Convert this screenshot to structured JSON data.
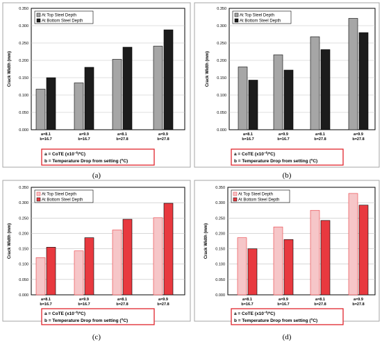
{
  "chart_data": [
    {
      "type": "bar",
      "panel_label": "(a)",
      "ylabel": "Crack Width (mm)",
      "ylim": [
        0,
        0.35
      ],
      "yticks": [
        "0.000",
        "0.050",
        "0.100",
        "0.150",
        "0.200",
        "0.250",
        "0.300",
        "0.350"
      ],
      "grid": true,
      "legend_position": "top-left",
      "categories": [
        [
          "a=8.1",
          "b=16.7"
        ],
        [
          "a=9.9",
          "b=16.7"
        ],
        [
          "a=8.1",
          "b=27.8"
        ],
        [
          "a=9.9",
          "b=27.8"
        ]
      ],
      "series": [
        {
          "name": "At Top Steel Depth",
          "values": [
            0.117,
            0.135,
            0.203,
            0.241
          ],
          "color": "#a6a6a6"
        },
        {
          "name": "At Bottom Steel Depth",
          "values": [
            0.15,
            0.18,
            0.238,
            0.288
          ],
          "color": "#1c1c1c"
        }
      ],
      "note": {
        "line1_pre": "a = CoTE (x10",
        "line1_sup": "−6",
        "line1_post": "/ºC)",
        "line2_pre": "b = Temperature Drop from setting (",
        "line2_sup": "o",
        "line2_post": "C)"
      }
    },
    {
      "type": "bar",
      "panel_label": "(b)",
      "ylabel": "Crack Width (mm)",
      "ylim": [
        0,
        0.35
      ],
      "yticks": [
        "0.000",
        "0.050",
        "0.100",
        "0.150",
        "0.200",
        "0.250",
        "0.300",
        "0.350"
      ],
      "grid": true,
      "legend_position": "top-left",
      "categories": [
        [
          "a=8.1",
          "b=16.7"
        ],
        [
          "a=9.9",
          "b=16.7"
        ],
        [
          "a=8.1",
          "b=27.8"
        ],
        [
          "a=9.9",
          "b=27.8"
        ]
      ],
      "series": [
        {
          "name": "At Top Steel Depth",
          "values": [
            0.181,
            0.216,
            0.268,
            0.321
          ],
          "color": "#a6a6a6"
        },
        {
          "name": "At Bottom Steel Depth",
          "values": [
            0.143,
            0.172,
            0.231,
            0.28
          ],
          "color": "#1c1c1c"
        }
      ],
      "note": {
        "line1_pre": "a = CoTE (x10",
        "line1_sup": "−6",
        "line1_post": "/ºC)",
        "line2_pre": "b = Temperature Drop from setting (",
        "line2_sup": "o",
        "line2_post": "C)"
      }
    },
    {
      "type": "bar",
      "panel_label": "(c)",
      "ylabel": "Crack Width (mm)",
      "ylim": [
        0,
        0.35
      ],
      "yticks": [
        "0.000",
        "0.050",
        "0.100",
        "0.150",
        "0.200",
        "0.250",
        "0.300",
        "0.350"
      ],
      "grid": true,
      "legend_position": "top-left",
      "categories": [
        [
          "a=8.1",
          "b=16.7"
        ],
        [
          "a=9.9",
          "b=16.7"
        ],
        [
          "a=8.1",
          "b=27.8"
        ],
        [
          "a=9.9",
          "b=27.8"
        ]
      ],
      "series": [
        {
          "name": "At Top Steel Depth",
          "values": [
            0.121,
            0.143,
            0.211,
            0.251
          ],
          "color": "#f6c6c8"
        },
        {
          "name": "At Bottom Steel Depth",
          "values": [
            0.155,
            0.186,
            0.246,
            0.298
          ],
          "color": "#e8393f"
        }
      ],
      "note": {
        "line1_pre": "a = CoTE (x10",
        "line1_sup": "−6",
        "line1_post": "/ºC)",
        "line2_pre": "b = Temperature Drop from setting (",
        "line2_sup": "o",
        "line2_post": "C)"
      }
    },
    {
      "type": "bar",
      "panel_label": "(d)",
      "ylabel": "Crack Width (mm)",
      "ylim": [
        0,
        0.35
      ],
      "yticks": [
        "0.000",
        "0.050",
        "0.100",
        "0.150",
        "0.200",
        "0.250",
        "0.300",
        "0.350"
      ],
      "grid": true,
      "legend_position": "top-left",
      "categories": [
        [
          "a=8.1",
          "b=16.7"
        ],
        [
          "a=9.9",
          "b=16.7"
        ],
        [
          "a=8.1",
          "b=27.8"
        ],
        [
          "a=9.9",
          "b=27.8"
        ]
      ],
      "series": [
        {
          "name": "At Top Steel Depth",
          "values": [
            0.186,
            0.221,
            0.275,
            0.33
          ],
          "color": "#f6c6c8"
        },
        {
          "name": "At Bottom Steel Depth",
          "values": [
            0.15,
            0.18,
            0.242,
            0.292
          ],
          "color": "#e8393f"
        }
      ],
      "note": {
        "line1_pre": "a = CoTE (x10",
        "line1_sup": "−6",
        "line1_post": "/ºC)",
        "line2_pre": "b = Temperature Drop from setting (",
        "line2_sup": "o",
        "line2_post": "C)"
      }
    }
  ]
}
